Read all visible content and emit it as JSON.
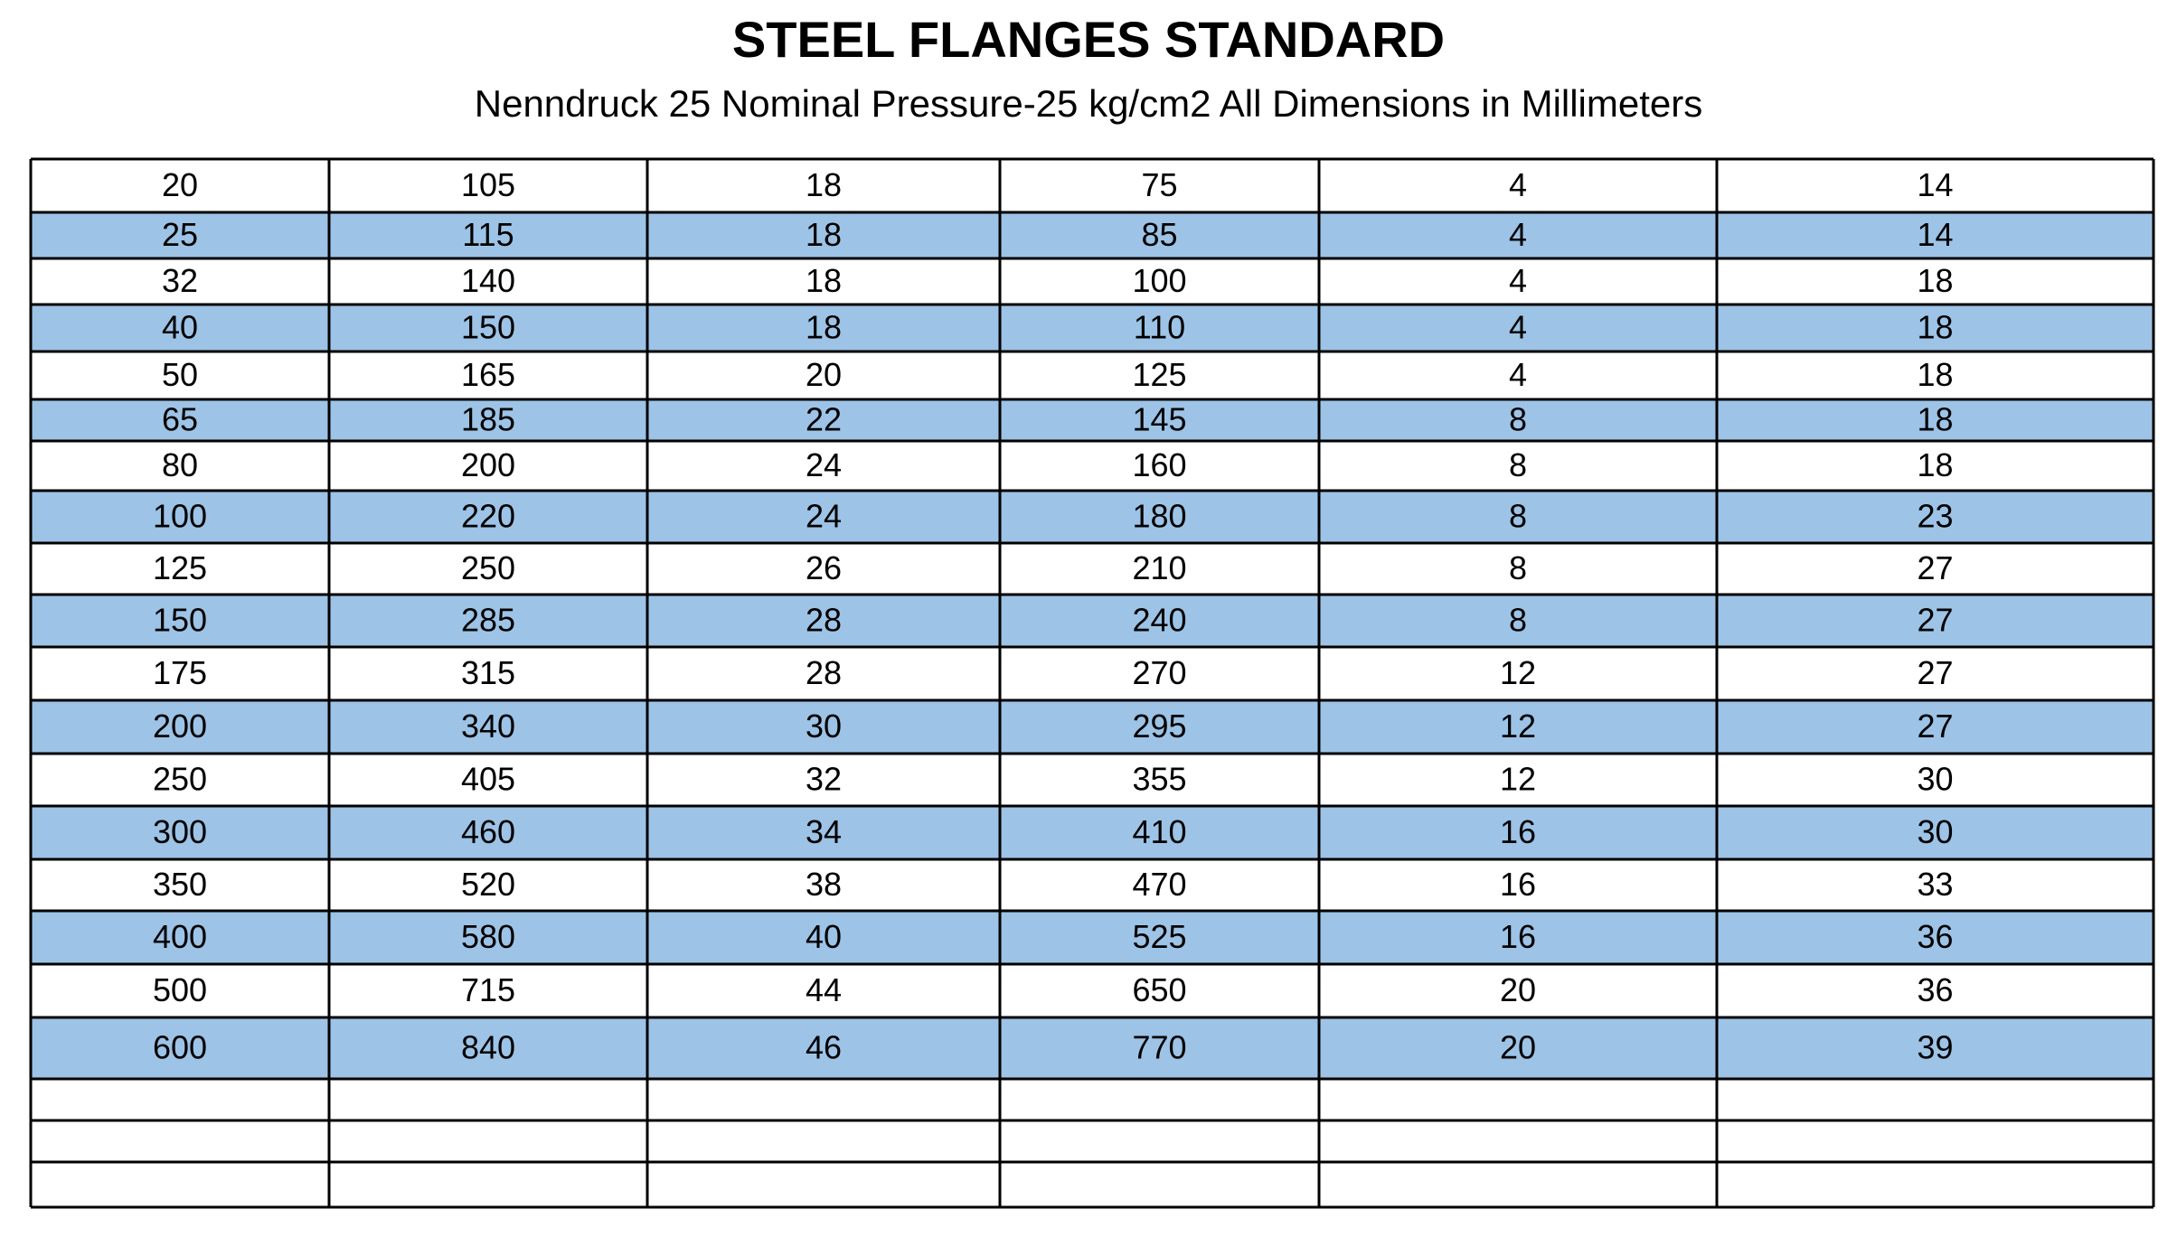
{
  "header": {
    "title": "STEEL FLANGES STANDARD",
    "subtitle": "Nenndruck 25 Nominal Pressure-25 kg/cm2 All Dimensions in Millimeters"
  },
  "table": {
    "rows": [
      [
        20,
        105,
        18,
        75,
        4,
        14
      ],
      [
        25,
        115,
        18,
        85,
        4,
        14
      ],
      [
        32,
        140,
        18,
        100,
        4,
        18
      ],
      [
        40,
        150,
        18,
        110,
        4,
        18
      ],
      [
        50,
        165,
        20,
        125,
        4,
        18
      ],
      [
        65,
        185,
        22,
        145,
        8,
        18
      ],
      [
        80,
        200,
        24,
        160,
        8,
        18
      ],
      [
        100,
        220,
        24,
        180,
        8,
        23
      ],
      [
        125,
        250,
        26,
        210,
        8,
        27
      ],
      [
        150,
        285,
        28,
        240,
        8,
        27
      ],
      [
        175,
        315,
        28,
        270,
        12,
        27
      ],
      [
        200,
        340,
        30,
        295,
        12,
        27
      ],
      [
        250,
        405,
        32,
        355,
        12,
        30
      ],
      [
        300,
        460,
        34,
        410,
        16,
        30
      ],
      [
        350,
        520,
        38,
        470,
        16,
        33
      ],
      [
        400,
        580,
        40,
        525,
        16,
        36
      ],
      [
        500,
        715,
        44,
        650,
        20,
        36
      ],
      [
        600,
        840,
        46,
        770,
        20,
        39
      ]
    ]
  }
}
